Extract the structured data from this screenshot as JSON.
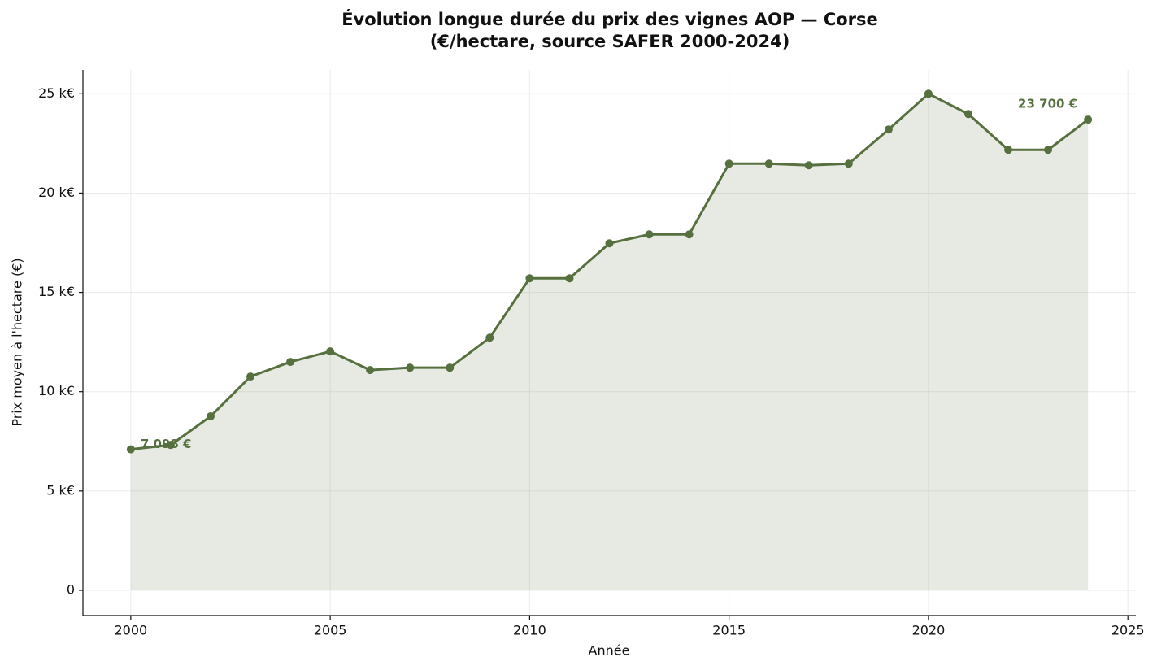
{
  "chart_data": {
    "type": "line",
    "title_lines": [
      "Évolution longue durée du prix des vignes AOP — Corse",
      "(€/hectare, source SAFER 2000-2024)"
    ],
    "xlabel": "Année",
    "ylabel": "Prix moyen à l'hectare (€)",
    "x": [
      2000,
      2001,
      2002,
      2003,
      2004,
      2005,
      2006,
      2007,
      2008,
      2009,
      2010,
      2011,
      2012,
      2013,
      2014,
      2015,
      2016,
      2017,
      2018,
      2019,
      2020,
      2021,
      2022,
      2023,
      2024
    ],
    "series": [
      {
        "name": "Corse",
        "color": "#56703f",
        "values": [
          7098,
          7320,
          8760,
          10760,
          11500,
          12030,
          11090,
          11210,
          11210,
          12720,
          15710,
          15710,
          17470,
          17920,
          17920,
          21480,
          21480,
          21400,
          21480,
          23200,
          25000,
          23980,
          22180,
          22180,
          23700
        ],
        "value_labels": [
          "7 098 €",
          null,
          null,
          null,
          null,
          null,
          null,
          null,
          null,
          null,
          null,
          null,
          null,
          null,
          null,
          null,
          null,
          null,
          null,
          null,
          null,
          null,
          null,
          null,
          "23 700 €"
        ]
      }
    ],
    "xlim": [
      1998.8,
      2025.2
    ],
    "xticks": [
      2000,
      2005,
      2010,
      2015,
      2020,
      2025
    ],
    "ylim": [
      -1270,
      26200
    ],
    "yticks": [
      0,
      {
        "value": 5000,
        "label": "5 k€"
      },
      {
        "value": 10000,
        "label": "10 k€"
      },
      {
        "value": 15000,
        "label": "15 k€"
      },
      {
        "value": 20000,
        "label": "20 k€"
      },
      {
        "value": 25000,
        "label": "25 k€"
      }
    ],
    "grid": true,
    "area_fill": true
  }
}
